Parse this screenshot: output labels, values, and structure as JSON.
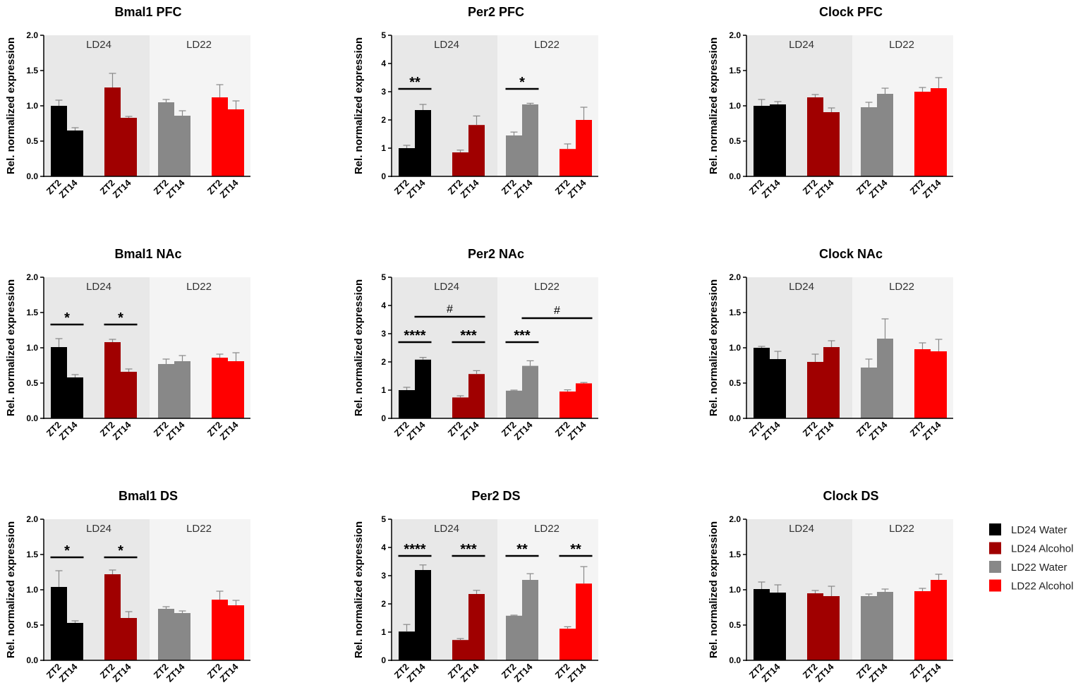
{
  "legend": {
    "items": [
      {
        "label": "LD24 Water",
        "color": "#000000"
      },
      {
        "label": "LD24 Alcohol",
        "color": "#a00000"
      },
      {
        "label": "LD22 Water",
        "color": "#888888"
      },
      {
        "label": "LD22 Alcohol",
        "color": "#ff0000"
      }
    ]
  },
  "chart_data": [
    {
      "type": "bar",
      "title": "Bmal1 PFC",
      "ylabel": "Rel. normalized expression",
      "ylim": [
        0,
        2.0
      ],
      "yticks": [
        "0.0",
        "0.5",
        "1.0",
        "1.5",
        "2.0"
      ],
      "regions": [
        "LD24",
        "LD22"
      ],
      "categories": [
        "ZT2",
        "ZT14"
      ],
      "series": [
        {
          "name": "LD24 Water",
          "values": [
            1.0,
            0.65
          ],
          "errors": [
            0.08,
            0.04
          ]
        },
        {
          "name": "LD24 Alcohol",
          "values": [
            1.26,
            0.83
          ],
          "errors": [
            0.2,
            0.02
          ]
        },
        {
          "name": "LD22 Water",
          "values": [
            1.05,
            0.86
          ],
          "errors": [
            0.04,
            0.07
          ]
        },
        {
          "name": "LD22 Alcohol",
          "values": [
            1.12,
            0.95
          ],
          "errors": [
            0.18,
            0.12
          ]
        }
      ],
      "significance": []
    },
    {
      "type": "bar",
      "title": "Per2 PFC",
      "ylabel": "Rel. normalized expression",
      "ylim": [
        0,
        5
      ],
      "yticks": [
        "0",
        "1",
        "2",
        "3",
        "4",
        "5"
      ],
      "regions": [
        "LD24",
        "LD22"
      ],
      "categories": [
        "ZT2",
        "ZT14"
      ],
      "series": [
        {
          "name": "LD24 Water",
          "values": [
            1.0,
            2.35
          ],
          "errors": [
            0.1,
            0.2
          ]
        },
        {
          "name": "LD24 Alcohol",
          "values": [
            0.85,
            1.82
          ],
          "errors": [
            0.08,
            0.32
          ]
        },
        {
          "name": "LD22 Water",
          "values": [
            1.45,
            2.55
          ],
          "errors": [
            0.12,
            0.04
          ]
        },
        {
          "name": "LD22 Alcohol",
          "values": [
            0.97,
            2.0
          ],
          "errors": [
            0.18,
            0.45
          ]
        }
      ],
      "significance": [
        {
          "label": "**",
          "y": 3.1,
          "from": [
            0,
            0
          ],
          "to": [
            0,
            1
          ]
        },
        {
          "label": "*",
          "y": 3.1,
          "from": [
            2,
            0
          ],
          "to": [
            2,
            1
          ]
        }
      ]
    },
    {
      "type": "bar",
      "title": "Clock PFC",
      "ylabel": "Rel. normalized expression",
      "ylim": [
        0,
        2.0
      ],
      "yticks": [
        "0.0",
        "0.5",
        "1.0",
        "1.5",
        "2.0"
      ],
      "regions": [
        "LD24",
        "LD22"
      ],
      "categories": [
        "ZT2",
        "ZT14"
      ],
      "series": [
        {
          "name": "LD24 Water",
          "values": [
            1.0,
            1.02
          ],
          "errors": [
            0.09,
            0.04
          ]
        },
        {
          "name": "LD24 Alcohol",
          "values": [
            1.12,
            0.91
          ],
          "errors": [
            0.04,
            0.06
          ]
        },
        {
          "name": "LD22 Water",
          "values": [
            0.98,
            1.17
          ],
          "errors": [
            0.07,
            0.08
          ]
        },
        {
          "name": "LD22 Alcohol",
          "values": [
            1.2,
            1.25
          ],
          "errors": [
            0.06,
            0.15
          ]
        }
      ],
      "significance": []
    },
    {
      "type": "bar",
      "title": "Bmal1 NAc",
      "ylabel": "Rel. normalized expression",
      "ylim": [
        0,
        2.0
      ],
      "yticks": [
        "0.0",
        "0.5",
        "1.0",
        "1.5",
        "2.0"
      ],
      "regions": [
        "LD24",
        "LD22"
      ],
      "categories": [
        "ZT2",
        "ZT14"
      ],
      "series": [
        {
          "name": "LD24 Water",
          "values": [
            1.01,
            0.58
          ],
          "errors": [
            0.12,
            0.04
          ]
        },
        {
          "name": "LD24 Alcohol",
          "values": [
            1.08,
            0.66
          ],
          "errors": [
            0.04,
            0.04
          ]
        },
        {
          "name": "LD22 Water",
          "values": [
            0.77,
            0.81
          ],
          "errors": [
            0.07,
            0.08
          ]
        },
        {
          "name": "LD22 Alcohol",
          "values": [
            0.86,
            0.81
          ],
          "errors": [
            0.05,
            0.12
          ]
        }
      ],
      "significance": [
        {
          "label": "*",
          "y": 1.33,
          "from": [
            0,
            0
          ],
          "to": [
            0,
            1
          ]
        },
        {
          "label": "*",
          "y": 1.33,
          "from": [
            1,
            0
          ],
          "to": [
            1,
            1
          ]
        }
      ]
    },
    {
      "type": "bar",
      "title": "Per2 NAc",
      "ylabel": "Rel. normalized expression",
      "ylim": [
        0,
        5
      ],
      "yticks": [
        "0",
        "1",
        "2",
        "3",
        "4",
        "5"
      ],
      "regions": [
        "LD24",
        "LD22"
      ],
      "categories": [
        "ZT2",
        "ZT14"
      ],
      "series": [
        {
          "name": "LD24 Water",
          "values": [
            1.0,
            2.08
          ],
          "errors": [
            0.1,
            0.08
          ]
        },
        {
          "name": "LD24 Alcohol",
          "values": [
            0.74,
            1.57
          ],
          "errors": [
            0.06,
            0.12
          ]
        },
        {
          "name": "LD22 Water",
          "values": [
            0.98,
            1.86
          ],
          "errors": [
            0.02,
            0.18
          ]
        },
        {
          "name": "LD22 Alcohol",
          "values": [
            0.95,
            1.24
          ],
          "errors": [
            0.06,
            0.03
          ]
        }
      ],
      "significance": [
        {
          "label": "#",
          "y": 3.6,
          "from": [
            0,
            1
          ],
          "to": [
            1,
            1
          ]
        },
        {
          "label": "#",
          "y": 3.55,
          "from": [
            2,
            1
          ],
          "to": [
            3,
            1
          ]
        },
        {
          "label": "****",
          "y": 2.7,
          "from": [
            0,
            0
          ],
          "to": [
            0,
            1
          ]
        },
        {
          "label": "***",
          "y": 2.7,
          "from": [
            1,
            0
          ],
          "to": [
            1,
            1
          ]
        },
        {
          "label": "***",
          "y": 2.7,
          "from": [
            2,
            0
          ],
          "to": [
            2,
            1
          ]
        }
      ]
    },
    {
      "type": "bar",
      "title": "Clock NAc",
      "ylabel": "Rel. normalized expression",
      "ylim": [
        0,
        2.0
      ],
      "yticks": [
        "0.0",
        "0.5",
        "1.0",
        "1.5",
        "2.0"
      ],
      "regions": [
        "LD24",
        "LD22"
      ],
      "categories": [
        "ZT2",
        "ZT14"
      ],
      "series": [
        {
          "name": "LD24 Water",
          "values": [
            1.0,
            0.84
          ],
          "errors": [
            0.02,
            0.11
          ]
        },
        {
          "name": "LD24 Alcohol",
          "values": [
            0.8,
            1.01
          ],
          "errors": [
            0.11,
            0.09
          ]
        },
        {
          "name": "LD22 Water",
          "values": [
            0.72,
            1.13
          ],
          "errors": [
            0.12,
            0.28
          ]
        },
        {
          "name": "LD22 Alcohol",
          "values": [
            0.98,
            0.95
          ],
          "errors": [
            0.09,
            0.17
          ]
        }
      ],
      "significance": []
    },
    {
      "type": "bar",
      "title": "Bmal1 DS",
      "ylabel": "Rel. normalized expression",
      "ylim": [
        0,
        2.0
      ],
      "yticks": [
        "0.0",
        "0.5",
        "1.0",
        "1.5",
        "2.0"
      ],
      "regions": [
        "LD24",
        "LD22"
      ],
      "categories": [
        "ZT2",
        "ZT14"
      ],
      "series": [
        {
          "name": "LD24 Water",
          "values": [
            1.04,
            0.53
          ],
          "errors": [
            0.23,
            0.03
          ]
        },
        {
          "name": "LD24 Alcohol",
          "values": [
            1.22,
            0.6
          ],
          "errors": [
            0.06,
            0.09
          ]
        },
        {
          "name": "LD22 Water",
          "values": [
            0.73,
            0.67
          ],
          "errors": [
            0.03,
            0.03
          ]
        },
        {
          "name": "LD22 Alcohol",
          "values": [
            0.86,
            0.78
          ],
          "errors": [
            0.12,
            0.07
          ]
        }
      ],
      "significance": [
        {
          "label": "*",
          "y": 1.46,
          "from": [
            0,
            0
          ],
          "to": [
            0,
            1
          ]
        },
        {
          "label": "*",
          "y": 1.46,
          "from": [
            1,
            0
          ],
          "to": [
            1,
            1
          ]
        }
      ]
    },
    {
      "type": "bar",
      "title": "Per2 DS",
      "ylabel": "Rel. normalized expression",
      "ylim": [
        0,
        5
      ],
      "yticks": [
        "0",
        "1",
        "2",
        "3",
        "4",
        "5"
      ],
      "regions": [
        "LD24",
        "LD22"
      ],
      "categories": [
        "ZT2",
        "ZT14"
      ],
      "series": [
        {
          "name": "LD24 Water",
          "values": [
            1.02,
            3.2
          ],
          "errors": [
            0.25,
            0.18
          ]
        },
        {
          "name": "LD24 Alcohol",
          "values": [
            0.72,
            2.35
          ],
          "errors": [
            0.05,
            0.13
          ]
        },
        {
          "name": "LD22 Water",
          "values": [
            1.58,
            2.85
          ],
          "errors": [
            0.02,
            0.22
          ]
        },
        {
          "name": "LD22 Alcohol",
          "values": [
            1.12,
            2.72
          ],
          "errors": [
            0.07,
            0.6
          ]
        }
      ],
      "significance": [
        {
          "label": "****",
          "y": 3.7,
          "from": [
            0,
            0
          ],
          "to": [
            0,
            1
          ]
        },
        {
          "label": "***",
          "y": 3.7,
          "from": [
            1,
            0
          ],
          "to": [
            1,
            1
          ]
        },
        {
          "label": "**",
          "y": 3.7,
          "from": [
            2,
            0
          ],
          "to": [
            2,
            1
          ]
        },
        {
          "label": "**",
          "y": 3.7,
          "from": [
            3,
            0
          ],
          "to": [
            3,
            1
          ]
        }
      ]
    },
    {
      "type": "bar",
      "title": "Clock DS",
      "ylabel": "Rel. normalized expression",
      "ylim": [
        0,
        2.0
      ],
      "yticks": [
        "0.0",
        "0.5",
        "1.0",
        "1.5",
        "2.0"
      ],
      "regions": [
        "LD24",
        "LD22"
      ],
      "categories": [
        "ZT2",
        "ZT14"
      ],
      "series": [
        {
          "name": "LD24 Water",
          "values": [
            1.01,
            0.96
          ],
          "errors": [
            0.1,
            0.11
          ]
        },
        {
          "name": "LD24 Alcohol",
          "values": [
            0.95,
            0.91
          ],
          "errors": [
            0.04,
            0.14
          ]
        },
        {
          "name": "LD22 Water",
          "values": [
            0.91,
            0.97
          ],
          "errors": [
            0.03,
            0.04
          ]
        },
        {
          "name": "LD22 Alcohol",
          "values": [
            0.98,
            1.14
          ],
          "errors": [
            0.04,
            0.08
          ]
        }
      ],
      "significance": []
    }
  ]
}
